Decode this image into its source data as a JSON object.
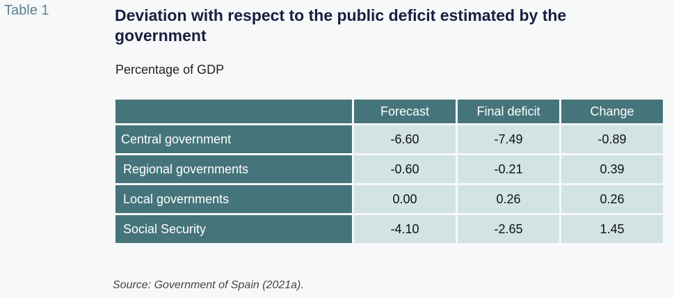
{
  "table_label": "Table 1",
  "title": "Deviation with respect to the public deficit estimated by the government",
  "subtitle": "Percentage of GDP",
  "columns": [
    "",
    "Forecast",
    "Final deficit",
    "Change"
  ],
  "rows": [
    {
      "label": "Central government",
      "forecast": "-6.60",
      "final": "-7.49",
      "change": "-0.89"
    },
    {
      "label": "Regional governments",
      "forecast": "-0.60",
      "final": "-0.21",
      "change": "0.39"
    },
    {
      "label": "Local governments",
      "forecast": "0.00",
      "final": "0.26",
      "change": "0.26"
    },
    {
      "label": "Social Security",
      "forecast": "-4.10",
      "final": "-2.65",
      "change": "1.45"
    }
  ],
  "source": "Source: Government of Spain (2021a)."
}
